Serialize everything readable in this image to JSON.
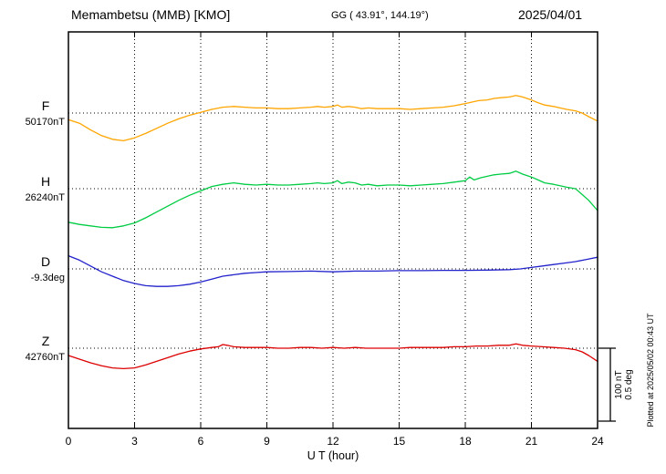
{
  "header": {
    "station_title": "Memambetsu (MMB)  [KMO]",
    "gg_coords": "GG ( 43.91°, 144.19°)",
    "date": "2025/04/01"
  },
  "footer": {
    "plotted_note": "Plotted at 2025/05/02 00:43 UT"
  },
  "scale_bar": {
    "nt_label": "100 nT",
    "deg_label": "0.5 deg"
  },
  "chart_data": {
    "type": "line",
    "title": "Memambetsu (MMB) [KMO] magnetogram for 2025/04/01",
    "xlabel": "U T (hour)",
    "x_range": [
      0,
      24
    ],
    "x_ticks": [
      0,
      3,
      6,
      9,
      12,
      15,
      18,
      21,
      24
    ],
    "grid": "dotted vertical lines at 3-hour intervals; dotted horizontal baseline per component",
    "scale": {
      "nT_per_div": 100,
      "deg_per_div": 0.5
    },
    "series": [
      {
        "name": "F",
        "unit": "nT",
        "color": "#FFA500",
        "baseline_label": "50170nT",
        "baseline_value": 50170,
        "points": [
          [
            0,
            -9
          ],
          [
            0.5,
            -14
          ],
          [
            1,
            -23
          ],
          [
            1.5,
            -31
          ],
          [
            2,
            -36
          ],
          [
            2.5,
            -38
          ],
          [
            3,
            -34
          ],
          [
            3.5,
            -28
          ],
          [
            4,
            -21
          ],
          [
            4.5,
            -14
          ],
          [
            5,
            -8
          ],
          [
            5.5,
            -3
          ],
          [
            6,
            1
          ],
          [
            6.5,
            5
          ],
          [
            7,
            8
          ],
          [
            7.5,
            9
          ],
          [
            8,
            8
          ],
          [
            8.5,
            7
          ],
          [
            9,
            7
          ],
          [
            9.5,
            6
          ],
          [
            10,
            6
          ],
          [
            10.5,
            7
          ],
          [
            11,
            8
          ],
          [
            11.3,
            9
          ],
          [
            11.6,
            8
          ],
          [
            12,
            9
          ],
          [
            12.2,
            11
          ],
          [
            12.4,
            8
          ],
          [
            12.7,
            9
          ],
          [
            13,
            8
          ],
          [
            13.3,
            6
          ],
          [
            13.6,
            7
          ],
          [
            14,
            6
          ],
          [
            14.5,
            6
          ],
          [
            15,
            6
          ],
          [
            15.5,
            5
          ],
          [
            16,
            6
          ],
          [
            16.5,
            7
          ],
          [
            17,
            8
          ],
          [
            17.5,
            10
          ],
          [
            18,
            13
          ],
          [
            18.3,
            15
          ],
          [
            18.6,
            17
          ],
          [
            19,
            18
          ],
          [
            19.3,
            20
          ],
          [
            19.6,
            21
          ],
          [
            20,
            22
          ],
          [
            20.3,
            24
          ],
          [
            20.6,
            22
          ],
          [
            21,
            18
          ],
          [
            21.3,
            14
          ],
          [
            21.6,
            11
          ],
          [
            22,
            9
          ],
          [
            22.3,
            7
          ],
          [
            22.6,
            5
          ],
          [
            23,
            3
          ],
          [
            23.3,
            0
          ],
          [
            23.6,
            -5
          ],
          [
            24,
            -11
          ]
        ]
      },
      {
        "name": "H",
        "unit": "nT",
        "color": "#00CC44",
        "baseline_label": "26240nT",
        "baseline_value": 26240,
        "points": [
          [
            0,
            -46
          ],
          [
            0.5,
            -49
          ],
          [
            1,
            -51
          ],
          [
            1.5,
            -53
          ],
          [
            2,
            -53.5
          ],
          [
            2.5,
            -51
          ],
          [
            3,
            -47
          ],
          [
            3.5,
            -40
          ],
          [
            4,
            -32
          ],
          [
            4.5,
            -24
          ],
          [
            5,
            -16
          ],
          [
            5.5,
            -9
          ],
          [
            6,
            -3
          ],
          [
            6.5,
            3
          ],
          [
            7,
            6
          ],
          [
            7.5,
            8
          ],
          [
            8,
            6
          ],
          [
            8.5,
            5
          ],
          [
            9,
            6
          ],
          [
            9.5,
            5
          ],
          [
            10,
            5
          ],
          [
            10.5,
            6
          ],
          [
            11,
            7
          ],
          [
            11.3,
            8
          ],
          [
            11.6,
            7
          ],
          [
            12,
            8
          ],
          [
            12.2,
            11
          ],
          [
            12.4,
            7
          ],
          [
            12.7,
            9
          ],
          [
            13,
            8
          ],
          [
            13.3,
            5
          ],
          [
            13.6,
            6
          ],
          [
            14,
            4
          ],
          [
            14.5,
            5
          ],
          [
            15,
            5
          ],
          [
            15.5,
            4
          ],
          [
            16,
            5
          ],
          [
            16.5,
            6
          ],
          [
            17,
            7
          ],
          [
            17.5,
            9
          ],
          [
            18,
            11
          ],
          [
            18.2,
            16
          ],
          [
            18.4,
            12
          ],
          [
            18.7,
            15
          ],
          [
            19,
            17
          ],
          [
            19.3,
            19
          ],
          [
            19.6,
            20
          ],
          [
            20,
            21
          ],
          [
            20.3,
            24
          ],
          [
            20.6,
            20
          ],
          [
            21,
            16
          ],
          [
            21.3,
            12
          ],
          [
            21.6,
            8
          ],
          [
            22,
            6
          ],
          [
            22.3,
            4
          ],
          [
            22.6,
            2
          ],
          [
            23,
            0
          ],
          [
            23.3,
            -8
          ],
          [
            23.6,
            -16
          ],
          [
            24,
            -30
          ]
        ]
      },
      {
        "name": "D",
        "unit": "deg",
        "color": "#2222CC",
        "baseline_label": "-9.3deg",
        "baseline_value": -9.3,
        "points": [
          [
            0,
            0.09
          ],
          [
            0.5,
            0.06
          ],
          [
            1,
            0.02
          ],
          [
            1.5,
            -0.02
          ],
          [
            2,
            -0.05
          ],
          [
            2.5,
            -0.08
          ],
          [
            3,
            -0.1
          ],
          [
            3.5,
            -0.115
          ],
          [
            4,
            -0.12
          ],
          [
            4.5,
            -0.12
          ],
          [
            5,
            -0.115
          ],
          [
            5.5,
            -0.105
          ],
          [
            6,
            -0.09
          ],
          [
            6.5,
            -0.07
          ],
          [
            7,
            -0.05
          ],
          [
            7.5,
            -0.04
          ],
          [
            8,
            -0.03
          ],
          [
            8.5,
            -0.025
          ],
          [
            9,
            -0.02
          ],
          [
            10,
            -0.018
          ],
          [
            11,
            -0.015
          ],
          [
            12,
            -0.02
          ],
          [
            13,
            -0.015
          ],
          [
            14,
            -0.015
          ],
          [
            15,
            -0.012
          ],
          [
            16,
            -0.012
          ],
          [
            17,
            -0.01
          ],
          [
            18,
            -0.01
          ],
          [
            19,
            -0.008
          ],
          [
            20,
            -0.005
          ],
          [
            20.5,
            0
          ],
          [
            21,
            0.01
          ],
          [
            21.5,
            0.02
          ],
          [
            22,
            0.03
          ],
          [
            22.5,
            0.04
          ],
          [
            23,
            0.05
          ],
          [
            23.5,
            0.065
          ],
          [
            24,
            0.08
          ]
        ]
      },
      {
        "name": "Z",
        "unit": "nT",
        "color": "#DD0000",
        "baseline_label": "42760nT",
        "baseline_value": 42760,
        "points": [
          [
            0,
            -10
          ],
          [
            0.5,
            -15
          ],
          [
            1,
            -20
          ],
          [
            1.5,
            -24
          ],
          [
            2,
            -27
          ],
          [
            2.5,
            -28
          ],
          [
            3,
            -27
          ],
          [
            3.5,
            -23
          ],
          [
            4,
            -18
          ],
          [
            4.5,
            -13
          ],
          [
            5,
            -8
          ],
          [
            5.5,
            -4
          ],
          [
            6,
            -1
          ],
          [
            6.5,
            1
          ],
          [
            6.8,
            2
          ],
          [
            7,
            5
          ],
          [
            7.2,
            4
          ],
          [
            7.5,
            2
          ],
          [
            8,
            1
          ],
          [
            8.5,
            1
          ],
          [
            9,
            1
          ],
          [
            9.5,
            0
          ],
          [
            10,
            0
          ],
          [
            10.5,
            1
          ],
          [
            11,
            1
          ],
          [
            11.5,
            0
          ],
          [
            12,
            1
          ],
          [
            12.5,
            0
          ],
          [
            13,
            1
          ],
          [
            13.5,
            0
          ],
          [
            14,
            0
          ],
          [
            14.5,
            0
          ],
          [
            15,
            0
          ],
          [
            15.5,
            1
          ],
          [
            16,
            1
          ],
          [
            16.5,
            1
          ],
          [
            17,
            1
          ],
          [
            17.5,
            2
          ],
          [
            18,
            2
          ],
          [
            18.5,
            3
          ],
          [
            19,
            3
          ],
          [
            19.5,
            4
          ],
          [
            20,
            4
          ],
          [
            20.3,
            6
          ],
          [
            20.6,
            4
          ],
          [
            21,
            3
          ],
          [
            21.5,
            2
          ],
          [
            22,
            1
          ],
          [
            22.5,
            0
          ],
          [
            23,
            -2
          ],
          [
            23.3,
            -5
          ],
          [
            23.6,
            -10
          ],
          [
            24,
            -18
          ]
        ]
      }
    ]
  }
}
